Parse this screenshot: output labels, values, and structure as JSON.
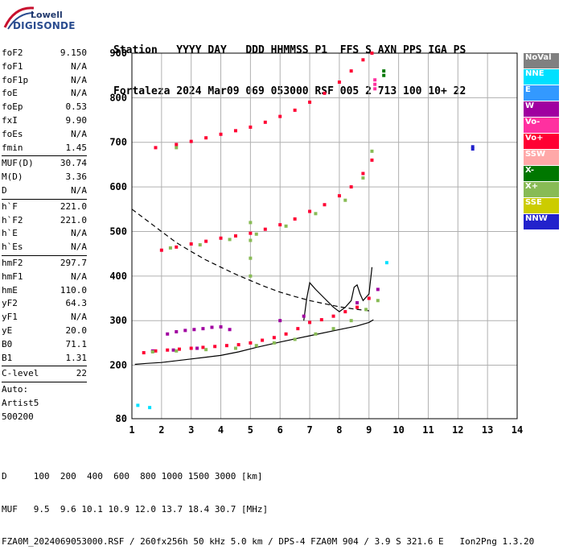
{
  "logo": {
    "line1": "Lowell",
    "line2": "DIGISONDE"
  },
  "header": {
    "line1": "Station   YYYY DAY   DDD HHMMSS P1  FFS S AXN PPS IGA PS",
    "line2": "Fortaleza 2024 Mar09 069 053000 RSF 005 2 713 100 10+ 22"
  },
  "params": [
    {
      "k": "foF2",
      "v": "9.150"
    },
    {
      "k": "foF1",
      "v": "N/A"
    },
    {
      "k": "foF1p",
      "v": "N/A"
    },
    {
      "k": "foE",
      "v": "N/A"
    },
    {
      "k": "foEp",
      "v": "0.53"
    },
    {
      "k": "fxI",
      "v": "9.90"
    },
    {
      "k": "foEs",
      "v": "N/A"
    },
    {
      "k": "fmin",
      "v": "1.45"
    },
    {
      "sep": true
    },
    {
      "k": "MUF(D)",
      "v": "30.74"
    },
    {
      "k": "M(D)",
      "v": "3.36"
    },
    {
      "k": "D",
      "v": "N/A"
    },
    {
      "sep": true
    },
    {
      "k": "h`F",
      "v": "221.0"
    },
    {
      "k": "h`F2",
      "v": "221.0"
    },
    {
      "k": "h`E",
      "v": "N/A"
    },
    {
      "k": "h`Es",
      "v": "N/A"
    },
    {
      "sep": true
    },
    {
      "k": "hmF2",
      "v": "297.7"
    },
    {
      "k": "hmF1",
      "v": "N/A"
    },
    {
      "k": "hmE",
      "v": "110.0"
    },
    {
      "k": "yF2",
      "v": "64.3"
    },
    {
      "k": "yF1",
      "v": "N/A"
    },
    {
      "k": "yE",
      "v": "20.0"
    },
    {
      "k": "B0",
      "v": "71.1"
    },
    {
      "k": "B1",
      "v": "1.31"
    },
    {
      "sep": true
    },
    {
      "k": "C-level",
      "v": "22"
    },
    {
      "sep": true
    },
    {
      "k": "Auto:",
      "v": ""
    },
    {
      "k": "Artist5",
      "v": ""
    },
    {
      "k": "500200",
      "v": ""
    }
  ],
  "legend": [
    {
      "label": "NoVal",
      "color": "#808080"
    },
    {
      "label": "NNE",
      "color": "#00e0ff"
    },
    {
      "label": "E",
      "color": "#3399ff"
    },
    {
      "label": "W",
      "color": "#a000a0"
    },
    {
      "label": "Vo-",
      "color": "#ff30a0"
    },
    {
      "label": "Vo+",
      "color": "#ff0033"
    },
    {
      "label": "SSW",
      "color": "#ffa8a8"
    },
    {
      "label": "X-",
      "color": "#007700"
    },
    {
      "label": "X+",
      "color": "#88bb55"
    },
    {
      "label": "SSE",
      "color": "#cccc00"
    },
    {
      "label": "NNW",
      "color": "#2222cc"
    }
  ],
  "footer": {
    "line1": "D     100  200  400  600  800 1000 1500 3000 [km]",
    "line2": "MUF   9.5  9.6 10.1 10.9 12.0 13.7 18.4 30.7 [MHz]",
    "line3": "FZA0M_2024069053000.RSF / 260fx256h 50 kHz 5.0 km / DPS-4 FZA0M 904 / 3.9 S 321.6 E   Ion2Png 1.3.20"
  },
  "chart_data": {
    "type": "scatter",
    "xlim": [
      1,
      14
    ],
    "ylim": [
      80,
      900
    ],
    "x_ticks": [
      1,
      2,
      3,
      4,
      5,
      6,
      7,
      8,
      9,
      10,
      11,
      12,
      13,
      14
    ],
    "y_ticks": [
      80,
      200,
      300,
      400,
      500,
      600,
      700,
      800,
      900
    ],
    "grid": true,
    "series": [
      {
        "name": "Vo+",
        "color": "#ff0033",
        "x": [
          1.4,
          1.8,
          2.2,
          2.6,
          3.0,
          3.4,
          3.8,
          4.2,
          4.6,
          5.0,
          5.4,
          5.8,
          6.2,
          6.6,
          7.0,
          7.4,
          7.8,
          8.2,
          8.6,
          9.0,
          2.0,
          2.5,
          3.0,
          3.5,
          4.0,
          4.5,
          5.0,
          5.5,
          6.0,
          6.5,
          7.0,
          7.5,
          8.0,
          8.4,
          8.8,
          9.1,
          1.8,
          2.5,
          3.0,
          3.5,
          4.0,
          4.5,
          5.0,
          5.5,
          6.0,
          6.5,
          7.0,
          7.5,
          8.0,
          8.4,
          8.8,
          9.1
        ],
        "y": [
          228,
          232,
          234,
          236,
          238,
          240,
          242,
          244,
          246,
          250,
          256,
          262,
          270,
          282,
          296,
          302,
          310,
          320,
          330,
          350,
          458,
          465,
          472,
          478,
          485,
          490,
          496,
          505,
          515,
          528,
          545,
          560,
          580,
          600,
          630,
          660,
          688,
          695,
          702,
          710,
          718,
          726,
          734,
          745,
          758,
          772,
          790,
          810,
          835,
          860,
          885,
          900
        ]
      },
      {
        "name": "W",
        "color": "#a000a0",
        "x": [
          2.2,
          2.5,
          2.8,
          3.1,
          3.4,
          3.7,
          4.0,
          4.3,
          1.7,
          2.4,
          3.2,
          8.6,
          9.3,
          6.0,
          6.8
        ],
        "y": [
          270,
          275,
          278,
          280,
          282,
          285,
          286,
          280,
          232,
          234,
          238,
          340,
          370,
          300,
          310
        ]
      },
      {
        "name": "X+",
        "color": "#88bb55",
        "x": [
          1.7,
          2.5,
          3.5,
          4.5,
          5.2,
          5.8,
          6.5,
          7.2,
          7.8,
          8.4,
          8.9,
          9.3,
          2.3,
          3.3,
          4.3,
          5.2,
          6.2,
          7.2,
          8.2,
          8.8,
          9.1,
          2.5,
          5.0,
          5.0,
          5.0,
          5.0
        ],
        "y": [
          230,
          232,
          235,
          238,
          244,
          250,
          258,
          270,
          282,
          300,
          325,
          345,
          463,
          470,
          482,
          494,
          512,
          540,
          570,
          620,
          680,
          688,
          400,
          440,
          480,
          520
        ]
      },
      {
        "name": "X-",
        "color": "#007700",
        "x": [
          9.5,
          9.5
        ],
        "y": [
          850,
          860
        ]
      },
      {
        "name": "Vo-",
        "color": "#ff30a0",
        "x": [
          9.2,
          9.2,
          9.2
        ],
        "y": [
          820,
          830,
          840
        ]
      },
      {
        "name": "NNW",
        "color": "#2222cc",
        "x": [
          12.5,
          12.5
        ],
        "y": [
          685,
          690
        ]
      },
      {
        "name": "NNE",
        "color": "#00e0ff",
        "x": [
          1.6,
          1.2,
          9.6
        ],
        "y": [
          105,
          110,
          430
        ]
      }
    ],
    "lines": [
      {
        "style": "solid",
        "x": [
          1.1,
          1.5,
          2.0,
          3.0,
          4.0,
          4.6,
          5.2,
          6.0,
          7.0,
          8.0,
          8.6,
          9.0,
          9.15
        ],
        "y": [
          202,
          204,
          206,
          214,
          222,
          230,
          240,
          252,
          266,
          280,
          288,
          296,
          302
        ]
      },
      {
        "style": "dashed",
        "x": [
          1.0,
          1.5,
          2.0,
          2.5,
          3.0,
          3.5,
          4.0,
          4.5,
          5.0,
          5.5,
          6.0,
          6.5,
          7.0,
          7.5,
          8.0,
          8.5,
          9.0
        ],
        "y": [
          550,
          525,
          500,
          475,
          455,
          436,
          420,
          404,
          390,
          376,
          364,
          354,
          345,
          338,
          331,
          326,
          322
        ]
      },
      {
        "style": "solid",
        "x": [
          6.8,
          6.9,
          7.0,
          7.2,
          7.5,
          7.8,
          8.0,
          8.2,
          8.4,
          8.5,
          8.6,
          8.7,
          8.8,
          9.0,
          9.1
        ],
        "y": [
          300,
          350,
          385,
          370,
          350,
          330,
          320,
          330,
          345,
          375,
          380,
          360,
          345,
          360,
          420
        ]
      }
    ]
  }
}
